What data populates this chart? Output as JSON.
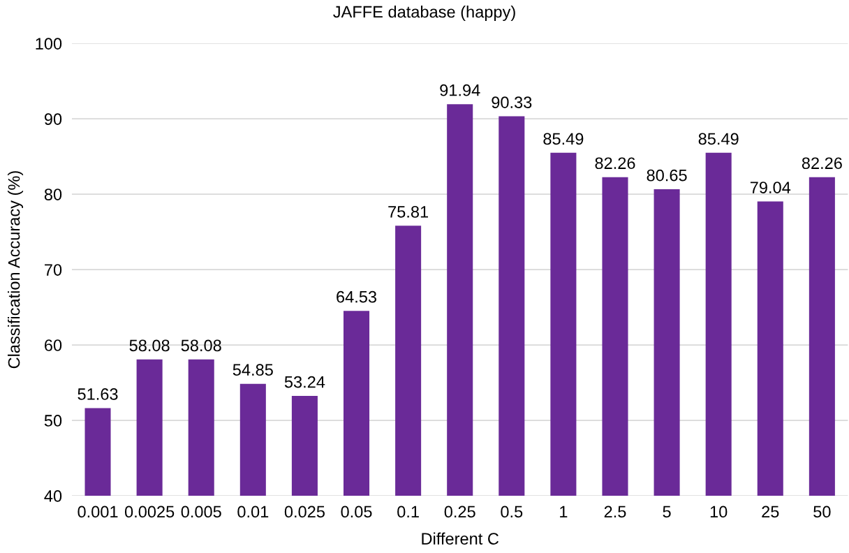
{
  "chart_data": {
    "type": "bar",
    "title": "JAFFE database (happy)",
    "xlabel": "Different C",
    "ylabel": "Classification Accuracy (%)",
    "categories": [
      "0.001",
      "0.0025",
      "0.005",
      "0.01",
      "0.025",
      "0.05",
      "0.1",
      "0.25",
      "0.5",
      "1",
      "2.5",
      "5",
      "10",
      "25",
      "50"
    ],
    "values": [
      51.63,
      58.08,
      58.08,
      54.85,
      53.24,
      64.53,
      75.81,
      91.94,
      90.33,
      85.49,
      82.26,
      80.65,
      85.49,
      79.04,
      82.26
    ],
    "color": "#6a2a98",
    "ylim": [
      40,
      100
    ],
    "yticks": [
      40,
      50,
      60,
      70,
      80,
      90,
      100
    ],
    "grid": "y",
    "data_labels": true,
    "legend": false
  }
}
